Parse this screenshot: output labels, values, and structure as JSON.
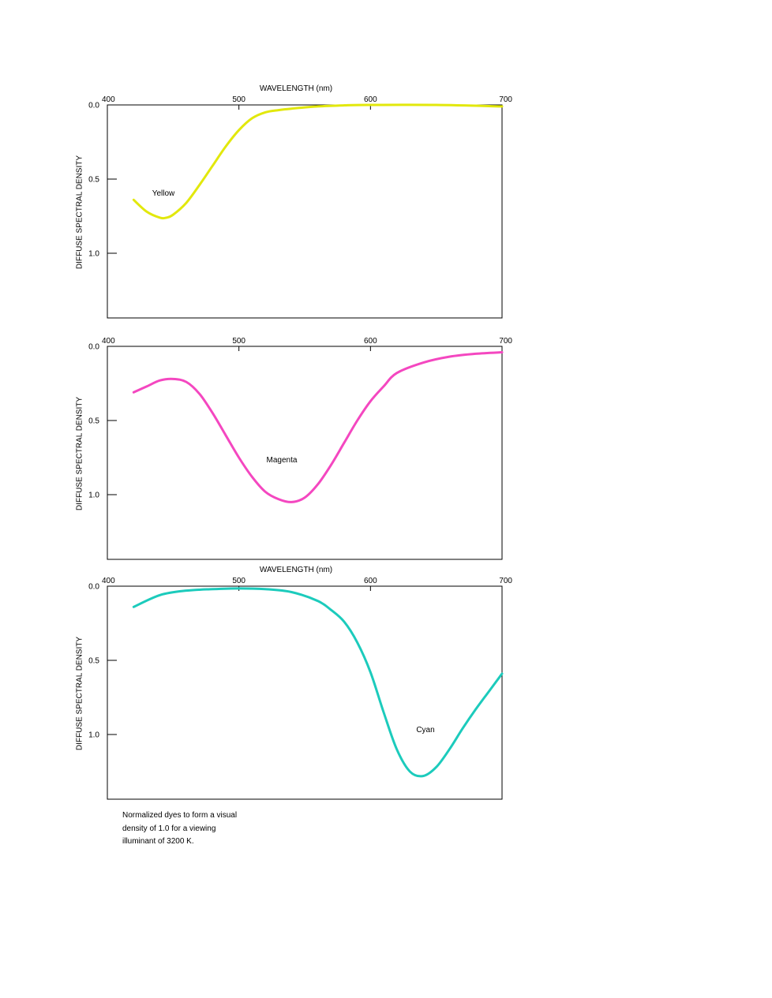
{
  "chart_data": [
    {
      "type": "line",
      "xlabel": "WAVELENGTH (nm)",
      "ylabel": "DIFFUSE SPECTRAL DENSITY",
      "xlim": [
        400,
        700
      ],
      "ylim": [
        0.0,
        1.45
      ],
      "y_inverted": true,
      "x_ticks": [
        "400",
        "500",
        "600",
        "700"
      ],
      "y_ticks": [
        "0.0",
        "0.5",
        "1.0"
      ],
      "grid": false,
      "series": [
        {
          "name": "Yellow",
          "color": "#e2e80c",
          "x": [
            420,
            430,
            440,
            445,
            450,
            460,
            470,
            480,
            490,
            500,
            510,
            520,
            530,
            540,
            560,
            580,
            600,
            650,
            700
          ],
          "y": [
            0.64,
            0.72,
            0.76,
            0.76,
            0.74,
            0.66,
            0.54,
            0.41,
            0.28,
            0.17,
            0.09,
            0.05,
            0.035,
            0.025,
            0.01,
            0.003,
            0.0,
            0.0,
            0.01
          ]
        }
      ]
    },
    {
      "type": "line",
      "xlabel": "",
      "ylabel": "DIFFUSE SPECTRAL DENSITY",
      "xlim": [
        400,
        700
      ],
      "ylim": [
        0.0,
        1.45
      ],
      "y_inverted": true,
      "x_ticks": [
        "400",
        "500",
        "600",
        "700"
      ],
      "y_ticks": [
        "0.0",
        "0.5",
        "1.0"
      ],
      "grid": false,
      "series": [
        {
          "name": "Magenta",
          "color": "#f447c0",
          "x": [
            420,
            430,
            440,
            450,
            460,
            470,
            480,
            490,
            500,
            510,
            520,
            530,
            540,
            550,
            560,
            570,
            580,
            590,
            600,
            610,
            620,
            640,
            660,
            680,
            700
          ],
          "y": [
            0.31,
            0.27,
            0.23,
            0.22,
            0.24,
            0.32,
            0.45,
            0.6,
            0.75,
            0.88,
            0.98,
            1.03,
            1.05,
            1.02,
            0.93,
            0.8,
            0.65,
            0.5,
            0.37,
            0.27,
            0.18,
            0.11,
            0.07,
            0.05,
            0.04
          ]
        }
      ]
    },
    {
      "type": "line",
      "xlabel": "WAVELENGTH (nm)",
      "ylabel": "DIFFUSE SPECTRAL DENSITY",
      "xlim": [
        400,
        700
      ],
      "ylim": [
        0.0,
        1.45
      ],
      "y_inverted": true,
      "x_ticks": [
        "400",
        "500",
        "600",
        "700"
      ],
      "y_ticks": [
        "0.0",
        "0.5",
        "1.0"
      ],
      "grid": false,
      "series": [
        {
          "name": "Cyan",
          "color": "#1ccbbc",
          "x": [
            420,
            440,
            460,
            480,
            500,
            520,
            540,
            560,
            570,
            580,
            590,
            600,
            610,
            620,
            630,
            640,
            650,
            660,
            670,
            680,
            690,
            700
          ],
          "y": [
            0.14,
            0.06,
            0.03,
            0.02,
            0.015,
            0.02,
            0.04,
            0.1,
            0.16,
            0.24,
            0.38,
            0.58,
            0.85,
            1.1,
            1.25,
            1.28,
            1.22,
            1.1,
            0.96,
            0.83,
            0.71,
            0.59
          ]
        }
      ]
    }
  ],
  "caption": [
    "Normalized dyes to form a visual",
    "density of 1.0 for a viewing",
    "illuminant of 3200 K."
  ]
}
